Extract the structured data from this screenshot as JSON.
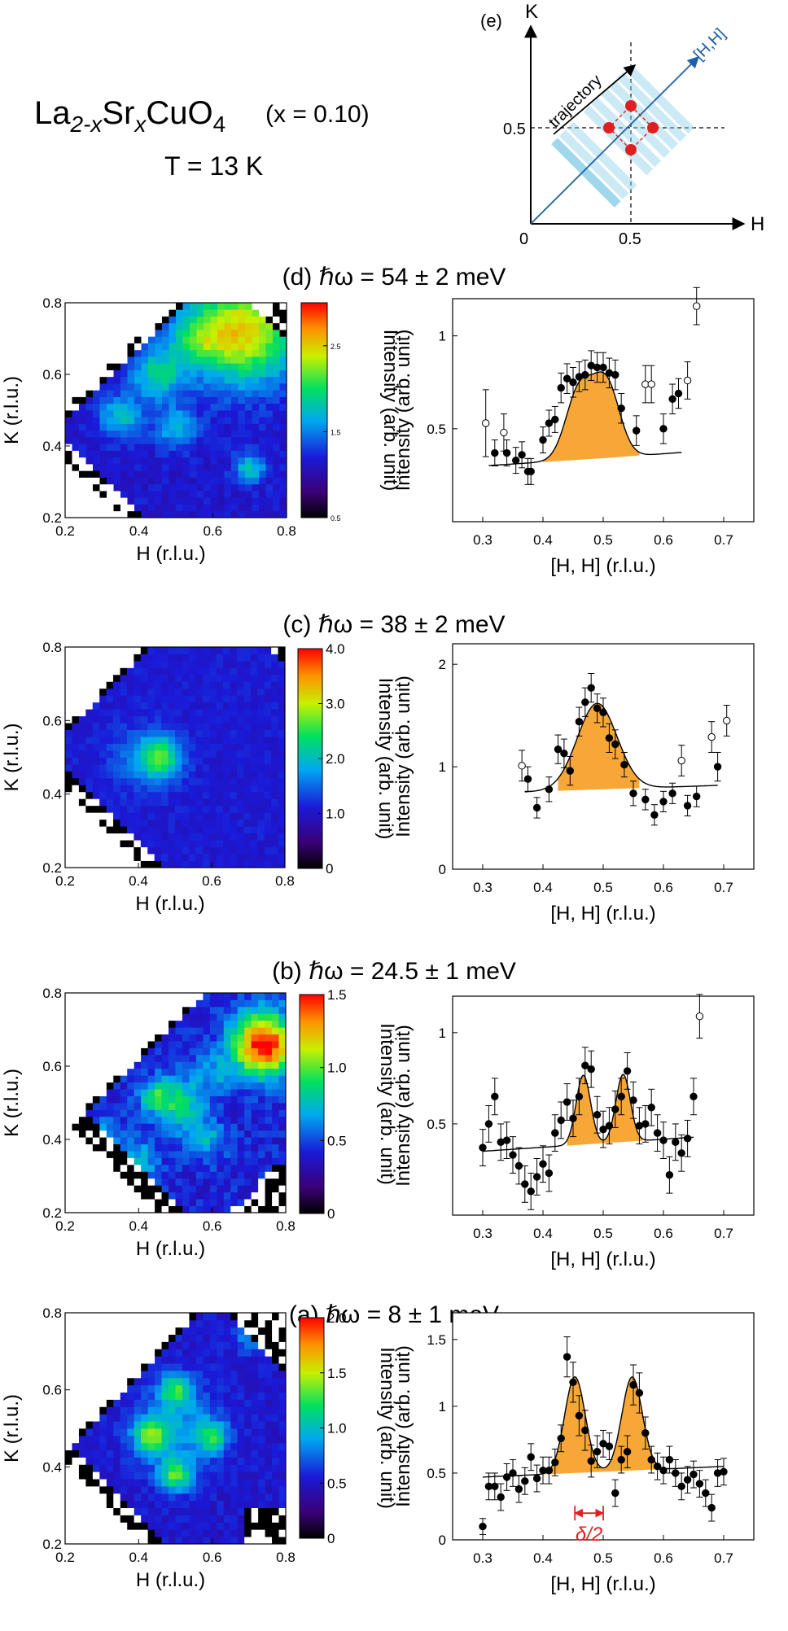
{
  "header": {
    "formula_parts": [
      "La",
      "2-x",
      "Sr",
      "x",
      "CuO",
      "4"
    ],
    "doping": "(x = 0.10)",
    "temperature": "T = 13 K"
  },
  "inset": {
    "label": "(e)",
    "k_axis": "K",
    "h_axis": "H",
    "origin": "0",
    "h_tick": "0.5",
    "k_tick": "0.5",
    "diag_label": "[H,H]",
    "trajectory_label": "trajectory",
    "peak_color": "#e02020",
    "diag_color": "#1f5fa8",
    "stripe_color": "#8fd0ea"
  },
  "panel_titles": {
    "d": "(d)  ℏω = 54 ± 2 meV",
    "c": "(c)  ℏω = 38 ± 2 meV",
    "b": "(b)  ℏω = 24.5 ± 1 meV",
    "a": "(a)  ℏω = 8 ± 1 meV"
  },
  "delta_label": "δ/2",
  "fill_color": "#f7a738",
  "chart_data": [
    {
      "id": "d",
      "type": "heatmap",
      "title": "(d)  ℏω = 54 ± 2 meV",
      "xlabel": "H (r.l.u.)",
      "ylabel": "K (r.l.u.)",
      "xlim": [
        0.2,
        0.8
      ],
      "ylim": [
        0.2,
        0.8
      ],
      "xticks": [
        "0.2",
        "0.4",
        "0.6",
        "0.8"
      ],
      "yticks": [
        "0.2",
        "0.4",
        "0.6",
        "0.8"
      ],
      "colorbar": {
        "label": "Intensity (arb. unit)",
        "ticks": [
          "0.5",
          "1.5",
          "2.5"
        ],
        "range": [
          0.5,
          3.0
        ]
      }
    },
    {
      "id": "d",
      "type": "scatter",
      "xlabel": "[H, H] (r.l.u.)",
      "ylabel": "Intensity (arb. unit)",
      "xlim": [
        0.25,
        0.75
      ],
      "ylim": [
        0,
        1.2
      ],
      "xticks": [
        "0.3",
        "0.4",
        "0.5",
        "0.6",
        "0.7"
      ],
      "yticks": [
        "0.5",
        "1"
      ],
      "filled_x": [
        0.32,
        0.34,
        0.355,
        0.365,
        0.375,
        0.38,
        0.4,
        0.41,
        0.42,
        0.43,
        0.44,
        0.45,
        0.46,
        0.47,
        0.48,
        0.49,
        0.5,
        0.51,
        0.52,
        0.53,
        0.555,
        0.6,
        0.615,
        0.625
      ],
      "filled_y": [
        0.37,
        0.37,
        0.33,
        0.36,
        0.27,
        0.27,
        0.44,
        0.53,
        0.55,
        0.72,
        0.77,
        0.75,
        0.78,
        0.79,
        0.84,
        0.83,
        0.83,
        0.8,
        0.79,
        0.61,
        0.49,
        0.5,
        0.66,
        0.69
      ],
      "filled_err": [
        0.07,
        0.07,
        0.07,
        0.07,
        0.07,
        0.07,
        0.07,
        0.07,
        0.07,
        0.08,
        0.08,
        0.08,
        0.08,
        0.08,
        0.08,
        0.08,
        0.08,
        0.08,
        0.08,
        0.08,
        0.08,
        0.08,
        0.08,
        0.08
      ],
      "open_x": [
        0.305,
        0.335,
        0.57,
        0.58,
        0.64,
        0.655
      ],
      "open_y": [
        0.53,
        0.48,
        0.74,
        0.74,
        0.76,
        1.16
      ],
      "open_err": [
        0.18,
        0.1,
        0.1,
        0.1,
        0.1,
        0.1
      ],
      "fit": {
        "baseline": [
          0.29,
          0.01,
          0.5,
          0.52,
          0.6
        ],
        "peaks": [
          {
            "amp": 0.37,
            "center": 0.46,
            "sigma": 0.022
          },
          {
            "amp": 0.4,
            "center": 0.505,
            "sigma": 0.022
          }
        ],
        "range": [
          0.31,
          0.63
        ],
        "fill_range": [
          0.4,
          0.56
        ]
      }
    },
    {
      "id": "c",
      "type": "heatmap",
      "title": "(c)  ℏω = 38 ± 2 meV",
      "xlabel": "H (r.l.u.)",
      "ylabel": "K (r.l.u.)",
      "xlim": [
        0.2,
        0.8
      ],
      "ylim": [
        0.2,
        0.8
      ],
      "xticks": [
        "0.2",
        "0.4",
        "0.6",
        "0.8"
      ],
      "yticks": [
        "0.2",
        "0.4",
        "0.6",
        "0.8"
      ],
      "colorbar": {
        "label": "Intensity (arb. unit)",
        "ticks": [
          "0",
          "1.0",
          "2.0",
          "3.0",
          "4.0"
        ],
        "range": [
          0,
          4.0
        ]
      }
    },
    {
      "id": "c",
      "type": "scatter",
      "xlabel": "[H, H] (r.l.u.)",
      "ylabel": "Intensity (arb. unit)",
      "xlim": [
        0.25,
        0.75
      ],
      "ylim": [
        0,
        2.2
      ],
      "xticks": [
        "0.3",
        "0.4",
        "0.5",
        "0.6",
        "0.7"
      ],
      "yticks": [
        "0",
        "1",
        "2"
      ],
      "filled_x": [
        0.375,
        0.39,
        0.41,
        0.425,
        0.435,
        0.445,
        0.46,
        0.47,
        0.48,
        0.49,
        0.5,
        0.51,
        0.52,
        0.535,
        0.55,
        0.57,
        0.585,
        0.6,
        0.615,
        0.64,
        0.655,
        0.69
      ],
      "filled_y": [
        0.88,
        0.6,
        0.78,
        1.17,
        1.13,
        0.96,
        1.44,
        1.63,
        1.77,
        1.57,
        1.53,
        1.28,
        1.22,
        1.02,
        0.74,
        0.68,
        0.53,
        0.66,
        0.74,
        0.62,
        0.71,
        1.0
      ],
      "filled_err": [
        0.12,
        0.1,
        0.12,
        0.14,
        0.14,
        0.14,
        0.14,
        0.14,
        0.14,
        0.14,
        0.14,
        0.14,
        0.14,
        0.12,
        0.12,
        0.1,
        0.1,
        0.1,
        0.1,
        0.1,
        0.1,
        0.14
      ],
      "open_x": [
        0.365,
        0.63,
        0.68,
        0.705
      ],
      "open_y": [
        1.01,
        1.06,
        1.29,
        1.45
      ],
      "open_err": [
        0.15,
        0.15,
        0.15,
        0.15
      ],
      "fit": {
        "baseline": [
          0.74,
          0.0,
          0.5,
          0.5,
          0.5
        ],
        "peaks": [
          {
            "amp": 0.84,
            "center": 0.49,
            "sigma": 0.033
          }
        ],
        "range": [
          0.37,
          0.69
        ],
        "fill_range": [
          0.425,
          0.56
        ]
      }
    },
    {
      "id": "b",
      "type": "heatmap",
      "title": "(b)  ℏω = 24.5 ± 1 meV",
      "xlabel": "H (r.l.u.)",
      "ylabel": "K (r.l.u.)",
      "xlim": [
        0.2,
        0.8
      ],
      "ylim": [
        0.2,
        0.8
      ],
      "xticks": [
        "0.2",
        "0.4",
        "0.6",
        "0.8"
      ],
      "yticks": [
        "0.2",
        "0.4",
        "0.6",
        "0.8"
      ],
      "colorbar": {
        "label": "Intensity (arb. unit)",
        "ticks": [
          "0",
          "0.5",
          "1.0",
          "1.5"
        ],
        "range": [
          0,
          1.5
        ]
      }
    },
    {
      "id": "b",
      "type": "scatter",
      "xlabel": "[H, H] (r.l.u.)",
      "ylabel": "Intensity (arb. unit)",
      "xlim": [
        0.25,
        0.75
      ],
      "ylim": [
        0,
        1.2
      ],
      "xticks": [
        "0.3",
        "0.4",
        "0.5",
        "0.6",
        "0.7"
      ],
      "yticks": [
        "0.5",
        "1"
      ],
      "filled_x": [
        0.3,
        0.31,
        0.32,
        0.33,
        0.34,
        0.35,
        0.36,
        0.37,
        0.38,
        0.39,
        0.4,
        0.41,
        0.42,
        0.43,
        0.44,
        0.45,
        0.46,
        0.47,
        0.48,
        0.49,
        0.5,
        0.51,
        0.52,
        0.53,
        0.54,
        0.55,
        0.56,
        0.57,
        0.58,
        0.59,
        0.6,
        0.61,
        0.62,
        0.63,
        0.64,
        0.65
      ],
      "filled_y": [
        0.37,
        0.5,
        0.65,
        0.4,
        0.41,
        0.33,
        0.27,
        0.17,
        0.13,
        0.21,
        0.28,
        0.23,
        0.45,
        0.52,
        0.62,
        0.53,
        0.65,
        0.82,
        0.8,
        0.55,
        0.47,
        0.49,
        0.58,
        0.65,
        0.79,
        0.63,
        0.49,
        0.5,
        0.59,
        0.45,
        0.41,
        0.22,
        0.4,
        0.34,
        0.42,
        0.65
      ],
      "filled_err": [
        0.1,
        0.1,
        0.1,
        0.1,
        0.1,
        0.1,
        0.1,
        0.1,
        0.1,
        0.1,
        0.1,
        0.1,
        0.1,
        0.1,
        0.1,
        0.1,
        0.1,
        0.1,
        0.1,
        0.1,
        0.1,
        0.1,
        0.1,
        0.1,
        0.1,
        0.1,
        0.1,
        0.1,
        0.1,
        0.1,
        0.1,
        0.1,
        0.1,
        0.1,
        0.1,
        0.1
      ],
      "open_x": [
        0.66
      ],
      "open_y": [
        1.09
      ],
      "open_err": [
        0.12
      ],
      "fit": {
        "baseline": [
          0.35,
          0.0,
          0.5,
          0.55,
          0.55
        ],
        "peaks": [
          {
            "amp": 0.38,
            "center": 0.467,
            "sigma": 0.012
          },
          {
            "amp": 0.37,
            "center": 0.533,
            "sigma": 0.012
          }
        ],
        "range": [
          0.3,
          0.65
        ],
        "fill_range": [
          0.44,
          0.565
        ]
      }
    },
    {
      "id": "a",
      "type": "heatmap",
      "title": "(a)  ℏω = 8 ± 1 meV",
      "xlabel": "H (r.l.u.)",
      "ylabel": "K (r.l.u.)",
      "xlim": [
        0.2,
        0.8
      ],
      "ylim": [
        0.2,
        0.8
      ],
      "xticks": [
        "0.2",
        "0.4",
        "0.6",
        "0.8"
      ],
      "yticks": [
        "0.2",
        "0.4",
        "0.6",
        "0.8"
      ],
      "colorbar": {
        "label": "Intensity (arb. unit)",
        "ticks": [
          "0",
          "0.5",
          "1.0",
          "1.5",
          "2.0"
        ],
        "range": [
          0,
          2.0
        ]
      }
    },
    {
      "id": "a",
      "type": "scatter",
      "xlabel": "[H, H] (r.l.u.)",
      "ylabel": "Intensity (arb. unit)",
      "xlim": [
        0.25,
        0.75
      ],
      "ylim": [
        0,
        1.7
      ],
      "xticks": [
        "0.3",
        "0.4",
        "0.5",
        "0.6",
        "0.7"
      ],
      "yticks": [
        "0",
        "0.5",
        "1",
        "1.5"
      ],
      "filled_x": [
        0.3,
        0.31,
        0.32,
        0.33,
        0.34,
        0.35,
        0.36,
        0.37,
        0.38,
        0.39,
        0.4,
        0.41,
        0.42,
        0.43,
        0.44,
        0.45,
        0.46,
        0.47,
        0.48,
        0.49,
        0.5,
        0.51,
        0.52,
        0.53,
        0.54,
        0.55,
        0.56,
        0.57,
        0.58,
        0.59,
        0.6,
        0.61,
        0.62,
        0.63,
        0.64,
        0.65,
        0.66,
        0.67,
        0.68,
        0.69,
        0.7
      ],
      "filled_y": [
        0.1,
        0.4,
        0.4,
        0.32,
        0.47,
        0.5,
        0.38,
        0.44,
        0.62,
        0.46,
        0.52,
        0.52,
        0.58,
        0.76,
        1.37,
        1.18,
        0.93,
        0.82,
        0.59,
        0.66,
        0.72,
        0.7,
        0.35,
        0.6,
        0.66,
        1.16,
        1.1,
        0.8,
        0.6,
        0.55,
        0.52,
        0.6,
        0.5,
        0.4,
        0.45,
        0.49,
        0.42,
        0.35,
        0.24,
        0.5,
        0.51
      ],
      "filled_err": [
        0.06,
        0.1,
        0.1,
        0.1,
        0.1,
        0.1,
        0.1,
        0.1,
        0.1,
        0.1,
        0.1,
        0.1,
        0.1,
        0.1,
        0.15,
        0.15,
        0.15,
        0.15,
        0.12,
        0.12,
        0.1,
        0.1,
        0.1,
        0.1,
        0.12,
        0.15,
        0.15,
        0.12,
        0.1,
        0.1,
        0.1,
        0.1,
        0.1,
        0.1,
        0.1,
        0.1,
        0.1,
        0.1,
        0.1,
        0.1,
        0.1
      ],
      "open_x": [],
      "open_y": [],
      "open_err": [],
      "fit": {
        "baseline": [
          0.47,
          0.0,
          0.5,
          0.5,
          0.5
        ],
        "peaks": [
          {
            "amp": 0.72,
            "center": 0.453,
            "sigma": 0.017
          },
          {
            "amp": 0.7,
            "center": 0.548,
            "sigma": 0.017
          }
        ],
        "range": [
          0.3,
          0.7
        ],
        "fill_range": [
          0.4,
          0.6
        ]
      }
    }
  ]
}
